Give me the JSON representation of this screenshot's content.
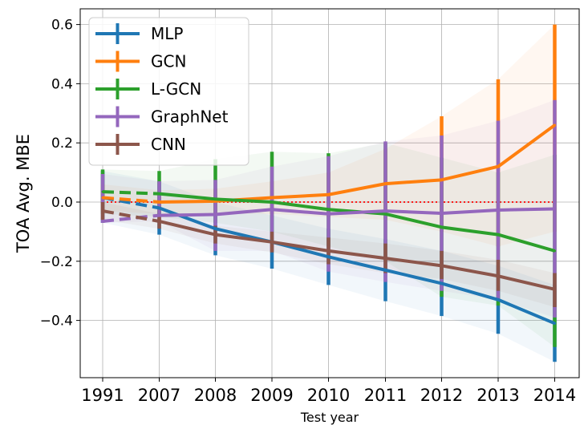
{
  "chart_data": {
    "type": "line",
    "title": "",
    "xlabel": "Test year",
    "ylabel": "TOA Avg. MBE",
    "categories": [
      "1991",
      "2007",
      "2008",
      "2009",
      "2010",
      "2011",
      "2012",
      "2013",
      "2014"
    ],
    "ylim": [
      -0.6,
      0.655
    ],
    "yticks": [
      -0.4,
      -0.2,
      0.0,
      0.2,
      0.4,
      0.6
    ],
    "ytick_labels": [
      "−0.4",
      "−0.2",
      "0.0",
      "0.2",
      "0.4",
      "0.6"
    ],
    "grid": true,
    "legend_position": "top-left",
    "reference_line": {
      "y": 0.0,
      "color": "#ff0000",
      "style": "dotted"
    },
    "dashed_segment": "first interval (1991 to 2007) drawn dashed",
    "series": [
      {
        "name": "MLP",
        "color": "#1f77b4",
        "values": [
          0.015,
          -0.02,
          -0.09,
          -0.135,
          -0.185,
          -0.23,
          -0.275,
          -0.33,
          -0.41
        ],
        "err_low": [
          -0.07,
          -0.11,
          -0.18,
          -0.225,
          -0.28,
          -0.335,
          -0.385,
          -0.445,
          -0.54
        ],
        "err_high": [
          0.105,
          0.07,
          0.0,
          -0.045,
          -0.09,
          -0.125,
          -0.165,
          -0.215,
          -0.28
        ]
      },
      {
        "name": "GCN",
        "color": "#ff7f0e",
        "values": [
          0.015,
          0.0,
          0.003,
          0.015,
          0.025,
          0.062,
          0.075,
          0.12,
          0.26
        ],
        "err_low": [
          -0.03,
          -0.04,
          -0.04,
          -0.04,
          -0.05,
          -0.06,
          -0.1,
          -0.15,
          -0.1
        ],
        "err_high": [
          0.06,
          0.04,
          0.045,
          0.07,
          0.1,
          0.18,
          0.29,
          0.415,
          0.6
        ]
      },
      {
        "name": "L-GCN",
        "color": "#2ca02c",
        "values": [
          0.035,
          0.028,
          0.01,
          0.0,
          -0.025,
          -0.04,
          -0.085,
          -0.11,
          -0.165
        ],
        "err_low": [
          -0.04,
          -0.05,
          -0.07,
          -0.1,
          -0.15,
          -0.2,
          -0.32,
          -0.35,
          -0.49
        ],
        "err_high": [
          0.11,
          0.105,
          0.145,
          0.17,
          0.165,
          0.2,
          0.15,
          0.1,
          0.16
        ]
      },
      {
        "name": "GraphNet",
        "color": "#9467bd",
        "values": [
          -0.065,
          -0.045,
          -0.042,
          -0.025,
          -0.04,
          -0.03,
          -0.038,
          -0.027,
          -0.023
        ],
        "err_low": [
          -0.07,
          -0.065,
          -0.165,
          -0.165,
          -0.235,
          -0.27,
          -0.3,
          -0.33,
          -0.39
        ],
        "err_high": [
          0.095,
          0.07,
          0.075,
          0.12,
          0.155,
          0.205,
          0.225,
          0.275,
          0.345
        ]
      },
      {
        "name": "CNN",
        "color": "#8c564b",
        "values": [
          -0.03,
          -0.065,
          -0.11,
          -0.135,
          -0.165,
          -0.19,
          -0.215,
          -0.25,
          -0.295
        ],
        "err_low": [
          -0.06,
          -0.09,
          -0.14,
          -0.17,
          -0.21,
          -0.24,
          -0.26,
          -0.3,
          -0.355
        ],
        "err_high": [
          0.0,
          -0.04,
          -0.08,
          -0.1,
          -0.12,
          -0.14,
          -0.165,
          -0.195,
          -0.24
        ]
      }
    ]
  }
}
